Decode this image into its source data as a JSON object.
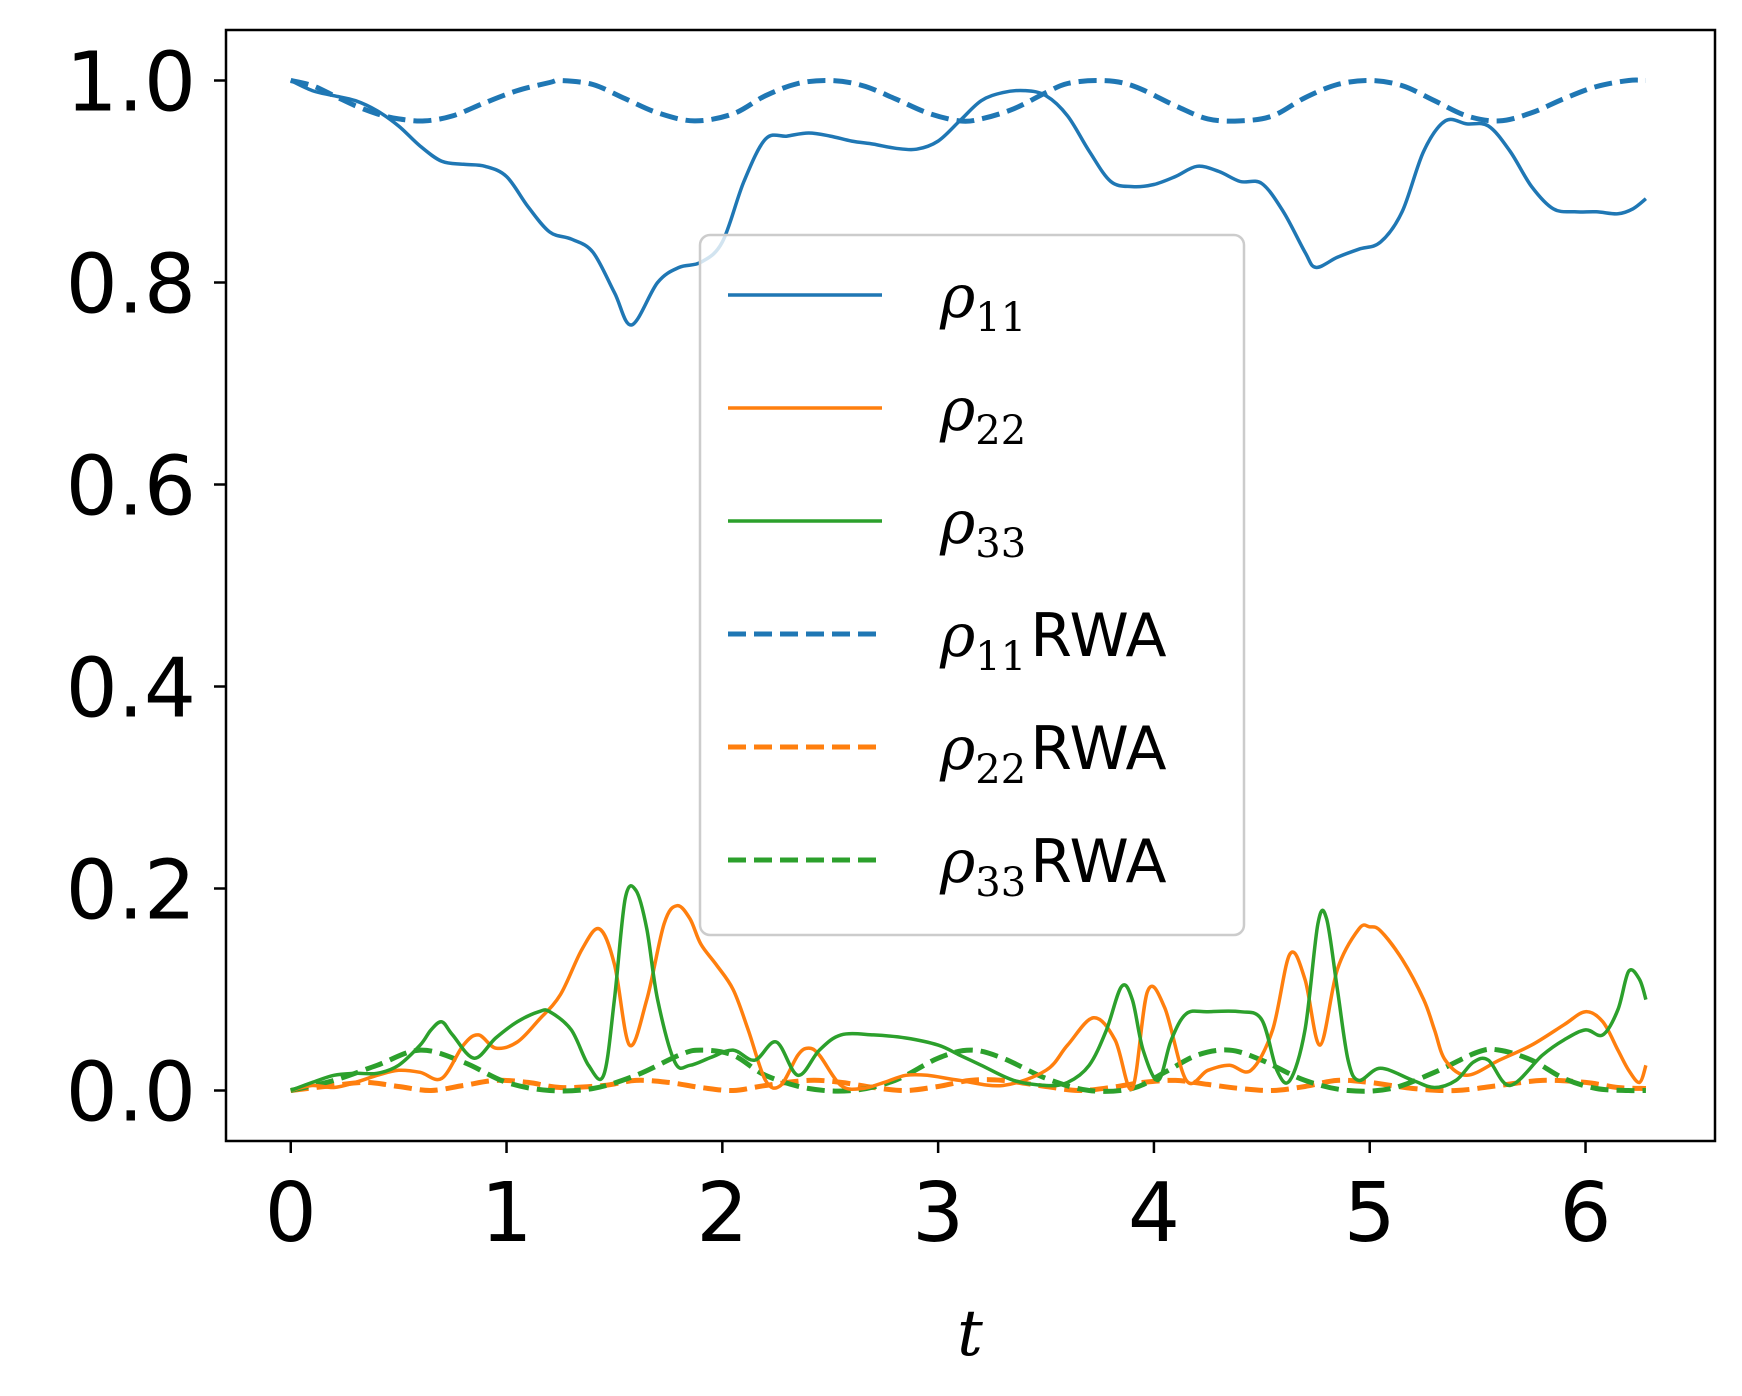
{
  "chart_data": {
    "type": "line",
    "xlabel": "t",
    "ylabel": "",
    "xlim": [
      -0.3,
      6.6
    ],
    "ylim": [
      -0.05,
      1.05
    ],
    "xticks": [
      0,
      1,
      2,
      3,
      4,
      5,
      6
    ],
    "xtick_labels": [
      "0",
      "1",
      "2",
      "3",
      "4",
      "5",
      "6"
    ],
    "yticks": [
      0.0,
      0.2,
      0.4,
      0.6,
      0.8,
      1.0
    ],
    "ytick_labels": [
      "0.0",
      "0.2",
      "0.4",
      "0.6",
      "0.8",
      "1.0"
    ],
    "legend_position": "center",
    "grid": false,
    "series": [
      {
        "name": "ρ11",
        "sub": "11",
        "suffix": "",
        "color": "#1f77b4",
        "dash": "solid",
        "x": [
          0,
          0.1,
          0.2,
          0.3,
          0.4,
          0.5,
          0.6,
          0.7,
          0.8,
          0.9,
          1.0,
          1.1,
          1.2,
          1.3,
          1.4,
          1.5,
          1.58,
          1.7,
          1.8,
          1.9,
          2.0,
          2.1,
          2.2,
          2.3,
          2.4,
          2.5,
          2.6,
          2.7,
          2.8,
          2.9,
          3.0,
          3.1,
          3.2,
          3.3,
          3.4,
          3.5,
          3.6,
          3.7,
          3.8,
          3.9,
          4.0,
          4.1,
          4.2,
          4.3,
          4.4,
          4.5,
          4.6,
          4.7,
          4.75,
          4.85,
          4.95,
          5.05,
          5.15,
          5.25,
          5.35,
          5.45,
          5.55,
          5.65,
          5.75,
          5.85,
          5.95,
          6.05,
          6.15,
          6.22,
          6.28
        ],
        "y": [
          1.0,
          0.99,
          0.985,
          0.98,
          0.97,
          0.955,
          0.935,
          0.92,
          0.917,
          0.915,
          0.905,
          0.875,
          0.85,
          0.843,
          0.83,
          0.79,
          0.758,
          0.8,
          0.815,
          0.82,
          0.84,
          0.9,
          0.942,
          0.945,
          0.948,
          0.945,
          0.94,
          0.937,
          0.933,
          0.932,
          0.94,
          0.96,
          0.98,
          0.988,
          0.99,
          0.985,
          0.965,
          0.93,
          0.9,
          0.895,
          0.897,
          0.905,
          0.915,
          0.91,
          0.9,
          0.898,
          0.87,
          0.83,
          0.815,
          0.825,
          0.833,
          0.84,
          0.87,
          0.93,
          0.96,
          0.957,
          0.955,
          0.93,
          0.895,
          0.873,
          0.87,
          0.87,
          0.868,
          0.873,
          0.883
        ]
      },
      {
        "name": "ρ22",
        "sub": "22",
        "suffix": "",
        "color": "#ff7f0e",
        "dash": "solid",
        "x": [
          0,
          0.1,
          0.2,
          0.3,
          0.4,
          0.5,
          0.6,
          0.7,
          0.8,
          0.87,
          0.95,
          1.05,
          1.15,
          1.25,
          1.35,
          1.43,
          1.5,
          1.57,
          1.65,
          1.73,
          1.79,
          1.85,
          1.9,
          1.97,
          2.05,
          2.12,
          2.2,
          2.27,
          2.35,
          2.4,
          2.45,
          2.55,
          2.65,
          2.75,
          2.85,
          2.95,
          3.1,
          3.3,
          3.5,
          3.6,
          3.72,
          3.82,
          3.9,
          3.97,
          4.05,
          4.15,
          4.25,
          4.35,
          4.45,
          4.55,
          4.63,
          4.7,
          4.77,
          4.85,
          4.95,
          5.0,
          5.05,
          5.15,
          5.25,
          5.3,
          5.35,
          5.45,
          5.6,
          5.75,
          5.9,
          6.0,
          6.08,
          6.15,
          6.2,
          6.25,
          6.28
        ],
        "y": [
          0.0,
          0.005,
          0.003,
          0.008,
          0.015,
          0.02,
          0.018,
          0.012,
          0.045,
          0.055,
          0.042,
          0.048,
          0.07,
          0.095,
          0.14,
          0.16,
          0.125,
          0.045,
          0.09,
          0.165,
          0.183,
          0.17,
          0.145,
          0.125,
          0.1,
          0.06,
          0.01,
          0.005,
          0.035,
          0.042,
          0.035,
          0.005,
          0.002,
          0.008,
          0.015,
          0.015,
          0.01,
          0.005,
          0.02,
          0.045,
          0.072,
          0.05,
          0.002,
          0.098,
          0.082,
          0.01,
          0.02,
          0.025,
          0.02,
          0.06,
          0.135,
          0.11,
          0.045,
          0.12,
          0.16,
          0.162,
          0.158,
          0.13,
          0.09,
          0.06,
          0.03,
          0.015,
          0.03,
          0.045,
          0.065,
          0.078,
          0.068,
          0.04,
          0.02,
          0.008,
          0.025
        ]
      },
      {
        "name": "ρ33",
        "sub": "33",
        "suffix": "",
        "color": "#2ca02c",
        "dash": "solid",
        "x": [
          0,
          0.1,
          0.2,
          0.3,
          0.4,
          0.5,
          0.6,
          0.65,
          0.7,
          0.75,
          0.85,
          0.95,
          1.05,
          1.15,
          1.2,
          1.3,
          1.38,
          1.45,
          1.5,
          1.55,
          1.6,
          1.65,
          1.7,
          1.78,
          1.85,
          1.95,
          2.05,
          2.15,
          2.25,
          2.35,
          2.45,
          2.55,
          2.7,
          2.85,
          3.0,
          3.1,
          3.2,
          3.35,
          3.5,
          3.6,
          3.7,
          3.78,
          3.85,
          3.9,
          3.95,
          4.02,
          4.08,
          4.15,
          4.25,
          4.4,
          4.5,
          4.57,
          4.63,
          4.7,
          4.76,
          4.8,
          4.85,
          4.9,
          4.95,
          5.05,
          5.2,
          5.3,
          5.4,
          5.48,
          5.55,
          5.65,
          5.8,
          5.9,
          6.0,
          6.08,
          6.15,
          6.2,
          6.25,
          6.28
        ],
        "y": [
          0.0,
          0.008,
          0.015,
          0.017,
          0.017,
          0.025,
          0.045,
          0.06,
          0.068,
          0.055,
          0.032,
          0.052,
          0.068,
          0.078,
          0.078,
          0.06,
          0.025,
          0.015,
          0.09,
          0.19,
          0.198,
          0.16,
          0.09,
          0.028,
          0.025,
          0.033,
          0.04,
          0.03,
          0.048,
          0.015,
          0.04,
          0.055,
          0.055,
          0.052,
          0.045,
          0.035,
          0.025,
          0.01,
          0.005,
          0.008,
          0.025,
          0.06,
          0.103,
          0.09,
          0.04,
          0.01,
          0.05,
          0.076,
          0.078,
          0.078,
          0.07,
          0.02,
          0.01,
          0.06,
          0.165,
          0.17,
          0.1,
          0.03,
          0.01,
          0.022,
          0.01,
          0.003,
          0.01,
          0.028,
          0.03,
          0.005,
          0.035,
          0.05,
          0.06,
          0.055,
          0.08,
          0.118,
          0.11,
          0.09
        ]
      },
      {
        "name": "ρ11RWA",
        "sub": "11",
        "suffix": "RWA",
        "color": "#1f77b4",
        "dash": "dashed",
        "x": [
          0,
          0.1,
          0.2,
          0.3,
          0.4,
          0.5,
          0.62,
          0.75,
          0.9,
          1.05,
          1.2,
          1.25,
          1.4,
          1.55,
          1.7,
          1.87,
          2.05,
          2.2,
          2.35,
          2.5,
          2.65,
          2.8,
          2.95,
          3.1,
          3.2,
          3.35,
          3.5,
          3.6,
          3.75,
          3.9,
          4.1,
          4.25,
          4.4,
          4.55,
          4.7,
          4.85,
          5.0,
          5.15,
          5.3,
          5.45,
          5.6,
          5.75,
          5.9,
          6.05,
          6.2,
          6.28
        ],
        "y": [
          1.0,
          0.995,
          0.985,
          0.975,
          0.967,
          0.962,
          0.96,
          0.965,
          0.978,
          0.99,
          0.998,
          1.0,
          0.996,
          0.982,
          0.968,
          0.96,
          0.967,
          0.985,
          0.997,
          1.0,
          0.995,
          0.982,
          0.968,
          0.96,
          0.962,
          0.972,
          0.988,
          0.997,
          1.0,
          0.995,
          0.975,
          0.962,
          0.96,
          0.965,
          0.983,
          0.996,
          1.0,
          0.995,
          0.98,
          0.965,
          0.96,
          0.968,
          0.982,
          0.994,
          1.0,
          1.0
        ]
      },
      {
        "name": "ρ22RWA",
        "sub": "22",
        "suffix": "RWA",
        "color": "#ff7f0e",
        "dash": "dashed",
        "x": [
          0,
          0.2,
          0.35,
          0.5,
          0.65,
          0.8,
          0.95,
          1.1,
          1.25,
          1.45,
          1.6,
          1.75,
          1.9,
          2.05,
          2.2,
          2.4,
          2.55,
          2.7,
          2.85,
          3.0,
          3.15,
          3.3,
          3.5,
          3.65,
          3.8,
          3.95,
          4.1,
          4.25,
          4.4,
          4.55,
          4.7,
          4.85,
          5.0,
          5.2,
          5.4,
          5.6,
          5.8,
          6.0,
          6.15,
          6.28
        ],
        "y": [
          0.0,
          0.005,
          0.008,
          0.004,
          0.0,
          0.005,
          0.01,
          0.008,
          0.003,
          0.005,
          0.01,
          0.008,
          0.003,
          0.0,
          0.005,
          0.01,
          0.008,
          0.003,
          0.0,
          0.004,
          0.01,
          0.01,
          0.004,
          0.0,
          0.003,
          0.008,
          0.01,
          0.006,
          0.002,
          0.0,
          0.004,
          0.01,
          0.008,
          0.002,
          0.0,
          0.005,
          0.01,
          0.008,
          0.003,
          0.002
        ]
      },
      {
        "name": "ρ33RWA",
        "sub": "33",
        "suffix": "RWA",
        "color": "#2ca02c",
        "dash": "dashed",
        "x": [
          0,
          0.2,
          0.4,
          0.6,
          0.8,
          1.0,
          1.2,
          1.4,
          1.6,
          1.8,
          1.9,
          2.05,
          2.2,
          2.4,
          2.6,
          2.8,
          3.0,
          3.15,
          3.3,
          3.5,
          3.7,
          3.9,
          4.05,
          4.2,
          4.35,
          4.5,
          4.7,
          4.9,
          5.1,
          5.3,
          5.5,
          5.6,
          5.75,
          5.9,
          6.05,
          6.2,
          6.28
        ],
        "y": [
          0.0,
          0.01,
          0.025,
          0.04,
          0.028,
          0.008,
          0.0,
          0.002,
          0.015,
          0.035,
          0.04,
          0.035,
          0.015,
          0.002,
          0.0,
          0.01,
          0.032,
          0.04,
          0.032,
          0.012,
          0.0,
          0.002,
          0.018,
          0.035,
          0.04,
          0.03,
          0.01,
          0.0,
          0.002,
          0.018,
          0.038,
          0.04,
          0.03,
          0.012,
          0.002,
          0.0,
          0.0
        ]
      }
    ]
  }
}
